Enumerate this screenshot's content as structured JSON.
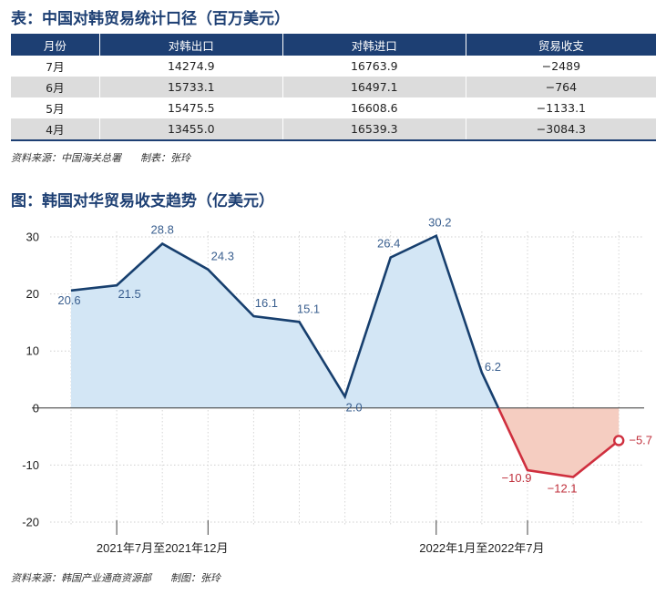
{
  "table": {
    "title": "表：中国对韩贸易统计口径（百万美元）",
    "headers": [
      "月份",
      "对韩出口",
      "对韩进口",
      "贸易收支"
    ],
    "rows": [
      [
        "7月",
        "14274.9",
        "16763.9",
        "−2489"
      ],
      [
        "6月",
        "15733.1",
        "16497.1",
        "−764"
      ],
      [
        "5月",
        "15475.5",
        "16608.6",
        "−1133.1"
      ],
      [
        "4月",
        "13455.0",
        "16539.3",
        "−3084.3"
      ]
    ],
    "source": "资料来源：中国海关总署      制表：张玲"
  },
  "chart_title": "图：韩国对华贸易收支趋势（亿美元）",
  "chart_source": "资料来源：韩国产业通商资源部      制图：张玲",
  "chart_data": {
    "type": "area",
    "title": "",
    "xlabel": "",
    "ylabel": "",
    "ylim": [
      -20,
      30
    ],
    "yticks": [
      30,
      20,
      10,
      0,
      -10,
      -20
    ],
    "grid": true,
    "category_groups": [
      {
        "label": "2021年7月至2021年12月"
      },
      {
        "label": "2022年1月至2022年7月"
      }
    ],
    "values": [
      20.6,
      21.5,
      28.8,
      24.3,
      16.1,
      15.1,
      2.0,
      26.4,
      30.2,
      6.2,
      -10.9,
      -12.1,
      -5.7
    ],
    "data_labels": [
      "20.6",
      "21.5",
      "28.8",
      "24.3",
      "16.1",
      "15.1",
      "2.0",
      "26.4",
      "30.2",
      "6.2",
      "−10.9",
      "−12.1",
      "−5.7"
    ],
    "colors": {
      "positive_line": "#173f6e",
      "positive_fill": "#d3e6f5",
      "negative_line": "#cf2f3e",
      "negative_fill": "#f5cdc1",
      "label_positive": "#3a5f8f",
      "label_negative": "#c0303c"
    }
  }
}
